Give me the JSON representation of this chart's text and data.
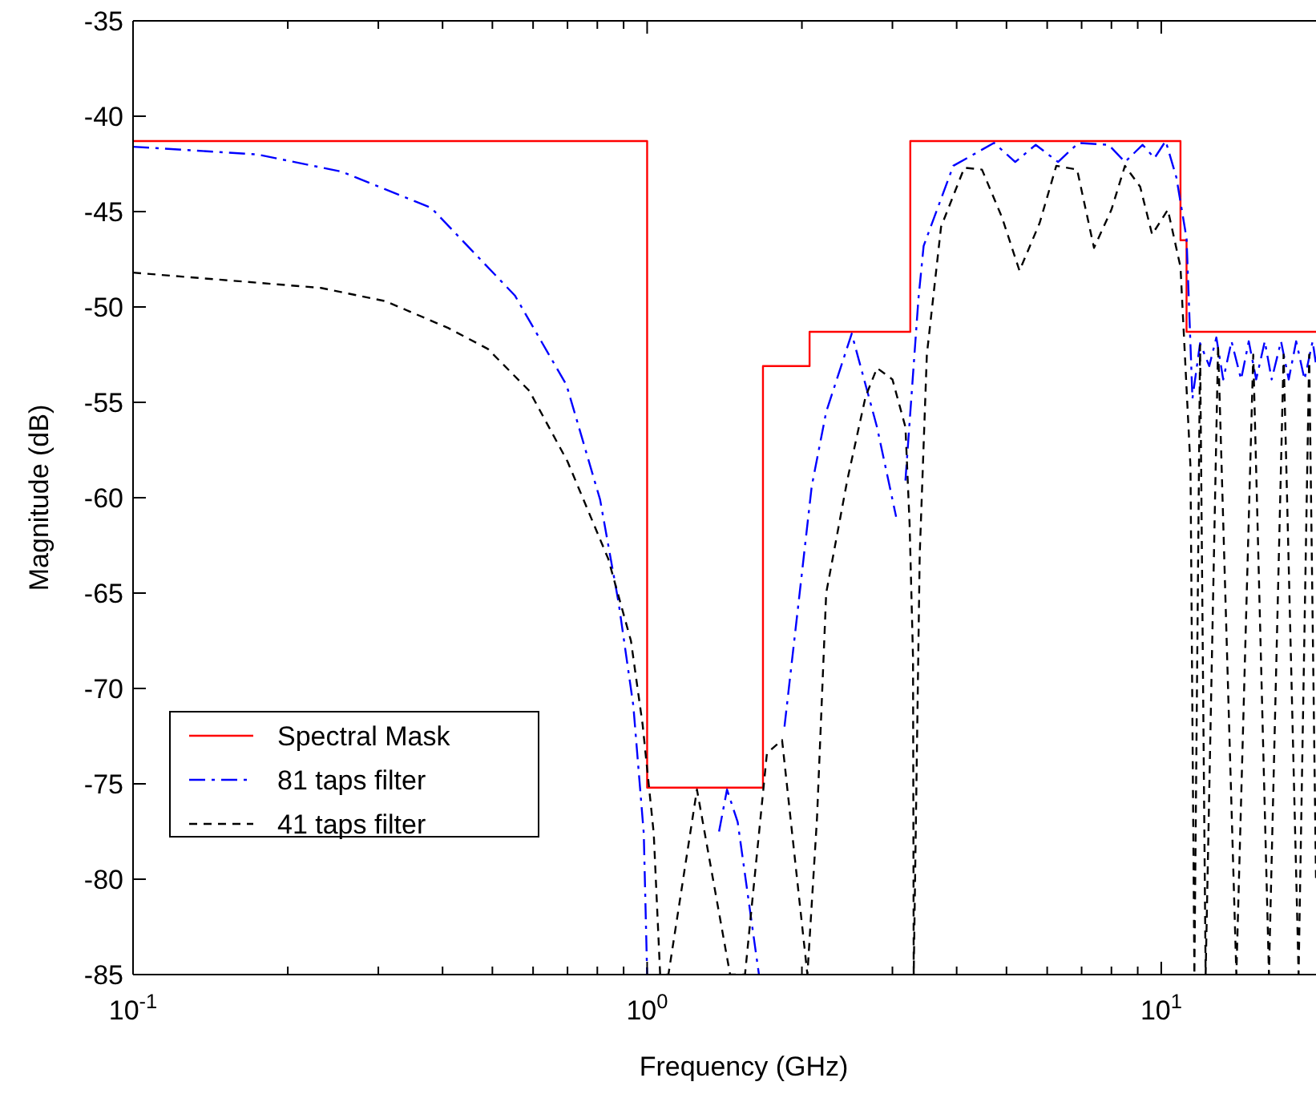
{
  "chart_data": {
    "type": "line",
    "xlabel": "Frequency (GHz)",
    "ylabel": "Magnitude (dB)",
    "log": "x",
    "xlim": [
      0.1,
      20
    ],
    "ylim": [
      -85,
      -35
    ],
    "xticks": [
      {
        "value": 0.1,
        "label": "10$^{-1}$"
      },
      {
        "value": 0.2,
        "label": null
      },
      {
        "value": 0.3,
        "label": null
      },
      {
        "value": 0.4,
        "label": null
      },
      {
        "value": 0.5,
        "label": null
      },
      {
        "value": 0.6,
        "label": null
      },
      {
        "value": 0.7,
        "label": null
      },
      {
        "value": 0.8,
        "label": null
      },
      {
        "value": 0.9,
        "label": null
      },
      {
        "value": 1,
        "label": "10$^{0}$"
      },
      {
        "value": 2,
        "label": null
      },
      {
        "value": 3,
        "label": null
      },
      {
        "value": 4,
        "label": null
      },
      {
        "value": 5,
        "label": null
      },
      {
        "value": 6,
        "label": null
      },
      {
        "value": 7,
        "label": null
      },
      {
        "value": 8,
        "label": null
      },
      {
        "value": 9,
        "label": null
      },
      {
        "value": 10,
        "label": "10$^{1}$"
      }
    ],
    "yticks": [
      -85,
      -80,
      -75,
      -70,
      -65,
      -60,
      -55,
      -50,
      -45,
      -40,
      -35
    ],
    "legend": "bottom left",
    "grid": false,
    "marker": "none",
    "series": [
      {
        "name": "Spectral Mask",
        "color": "#ff0000",
        "type": "step",
        "line_style": "solid",
        "x": [
          0.1,
          1.0,
          1.0,
          1.68,
          1.68,
          2.07,
          2.07,
          3.25,
          3.25,
          10.9,
          10.9,
          11.2,
          11.2,
          20
        ],
        "values": [
          -41.3,
          -41.3,
          -75.2,
          -75.2,
          -53.1,
          -53.1,
          -51.3,
          -51.3,
          -41.3,
          -41.3,
          -46.5,
          -46.5,
          -51.3,
          -51.3
        ]
      },
      {
        "name": "81 taps filter",
        "color": "#0000ff",
        "line_style": "dashed",
        "x": [
          0.1,
          0.174,
          0.254,
          0.38,
          0.553,
          0.697,
          0.81,
          0.88,
          0.94,
          0.985,
          1.0,
          null,
          1.38,
          1.43,
          1.5,
          1.65,
          null,
          1.85,
          1.98,
          2.09,
          2.23,
          2.5,
          2.8,
          3.05,
          null,
          3.18,
          3.37,
          3.45,
          3.94,
          4.73,
          5.2,
          5.7,
          6.3,
          6.9,
          7.9,
          8.5,
          9.2,
          9.7,
          10.2,
          10.7,
          11.2,
          11.5,
          11.9,
          12.4,
          12.8,
          13.2,
          13.7,
          14.3,
          14.8,
          15.3,
          15.9,
          16.4,
          17.1,
          17.7,
          18.3,
          19.0,
          19.7,
          20
        ],
        "values": [
          -41.6,
          -42.0,
          -42.9,
          -44.8,
          -49.4,
          -54.1,
          -60.1,
          -65.5,
          -70.9,
          -77.6,
          -85,
          null,
          -77.5,
          -75.3,
          -77.0,
          -85,
          null,
          -72.0,
          -65.0,
          -59.4,
          -55.5,
          -51.4,
          -56.3,
          -61.0,
          null,
          -59.1,
          -49.6,
          -46.8,
          -42.6,
          -41.4,
          -42.4,
          -41.5,
          -42.4,
          -41.4,
          -41.5,
          -42.4,
          -41.5,
          -42.2,
          -41.3,
          -43.2,
          -46.4,
          -54.8,
          -51.9,
          -53.1,
          -51.6,
          -53.8,
          -51.8,
          -53.8,
          -51.8,
          -53.8,
          -51.8,
          -53.8,
          -51.8,
          -53.8,
          -51.8,
          -53.8,
          -51.8,
          -53.0
        ]
      },
      {
        "name": "41 taps filter",
        "color": "#000000",
        "line_style": "dashed",
        "x": [
          0.1,
          0.232,
          0.31,
          0.41,
          0.49,
          0.59,
          0.7,
          0.84,
          0.93,
          0.98,
          1.03,
          1.06,
          1.1,
          1.25,
          1.45,
          1.55,
          1.71,
          1.83,
          2.05,
          2.14,
          2.23,
          2.45,
          2.66,
          2.8,
          3.0,
          3.18,
          3.24,
          3.29,
          3.3,
          3.39,
          3.5,
          3.73,
          4.14,
          4.48,
          4.9,
          5.3,
          5.8,
          6.25,
          6.86,
          7.4,
          8.0,
          8.5,
          9.1,
          9.6,
          10.3,
          10.9,
          11.4,
          11.6,
          11.9,
          12.2,
          12.9,
          14.0,
          15.1,
          16.2,
          17.3,
          18.5,
          19.4,
          20
        ],
        "values": [
          -48.2,
          -49.0,
          -49.7,
          -51.1,
          -52.2,
          -54.4,
          -58.1,
          -63.2,
          -67.5,
          -71.9,
          -77.6,
          -85,
          -85,
          -75.3,
          -85,
          -85,
          -73.4,
          -72.7,
          -85,
          -76.8,
          -65.0,
          -59.1,
          -54.7,
          -53.2,
          -53.8,
          -56.3,
          -61.4,
          -68.4,
          -85,
          -63.0,
          -52.5,
          -45.8,
          -42.7,
          -42.8,
          -45.3,
          -48.1,
          -45.6,
          -42.6,
          -42.8,
          -46.9,
          -44.9,
          -42.6,
          -43.7,
          -46.2,
          -44.9,
          -47.9,
          -58.4,
          -85,
          -52.0,
          -85,
          -52.0,
          -85,
          -52.5,
          -85,
          -52.5,
          -85,
          -52.5,
          -80.0
        ]
      }
    ]
  }
}
